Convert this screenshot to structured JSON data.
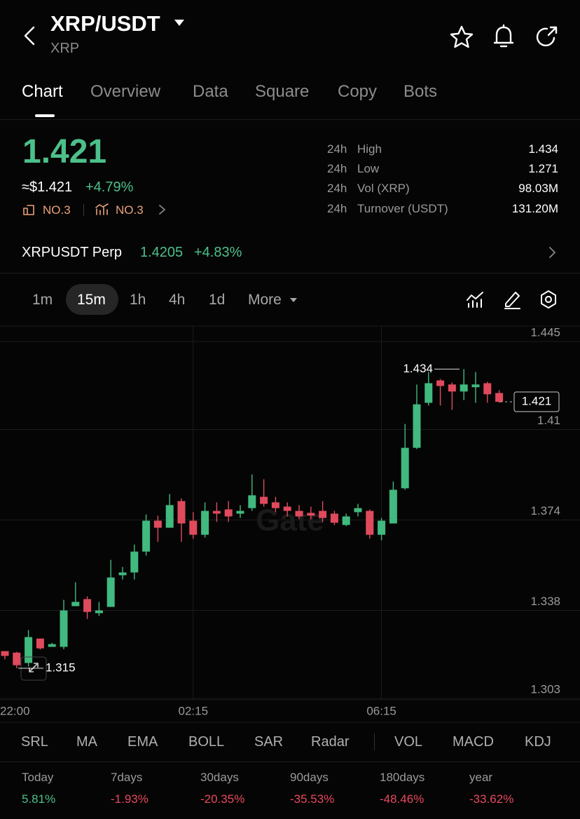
{
  "header": {
    "title": "XRP/USDT",
    "subtitle": "XRP"
  },
  "tabs": [
    "Chart",
    "Overview",
    "Data",
    "Square",
    "Copy",
    "Bots"
  ],
  "price": {
    "last": "1.421",
    "usd": "≈$1.421",
    "change": "+4.79%",
    "rank1": "NO.3",
    "rank2": "NO.3"
  },
  "stats": [
    {
      "period": "24h",
      "label": "High",
      "value": "1.434"
    },
    {
      "period": "24h",
      "label": "Low",
      "value": "1.271"
    },
    {
      "period": "24h",
      "label": "Vol (XRP)",
      "value": "98.03M"
    },
    {
      "period": "24h",
      "label": "Turnover (USDT)",
      "value": "131.20M"
    }
  ],
  "perp": {
    "name": "XRPUSDT Perp",
    "price": "1.4205",
    "change": "+4.83%"
  },
  "intervals": [
    "1m",
    "15m",
    "1h",
    "4h",
    "1d",
    "More"
  ],
  "chart_data": {
    "type": "candlestick",
    "watermark": "Gate",
    "categories": [
      "22:00",
      null,
      null,
      null,
      null,
      null,
      null,
      null,
      null,
      null,
      null,
      null,
      null,
      null,
      null,
      null,
      "02:15",
      null,
      null,
      null,
      null,
      null,
      null,
      null,
      null,
      null,
      null,
      null,
      null,
      null,
      null,
      null,
      "06:15",
      null,
      null,
      null,
      null,
      null,
      null,
      null,
      null,
      null,
      null
    ],
    "open": [
      1.3218,
      1.3212,
      1.3171,
      1.3268,
      1.3235,
      1.3235,
      1.3397,
      1.3425,
      1.3369,
      1.3394,
      1.352,
      1.3531,
      1.3614,
      1.3737,
      1.3709,
      1.3815,
      1.3737,
      1.3681,
      1.3776,
      1.3782,
      1.3765,
      1.3787,
      1.3832,
      1.381,
      1.3793,
      1.3776,
      1.3768,
      1.3776,
      1.3765,
      1.372,
      1.3771,
      1.3776,
      1.3681,
      1.3726,
      1.3866,
      1.4027,
      1.4206,
      1.4295,
      1.4279,
      1.4251,
      1.4268,
      1.4284,
      1.4245
    ],
    "high": [
      1.3218,
      1.3215,
      1.3302,
      1.3268,
      1.3251,
      1.3422,
      1.3492,
      1.3436,
      1.3414,
      1.3581,
      1.3553,
      1.3642,
      1.3762,
      1.3757,
      1.3843,
      1.3826,
      1.3771,
      1.381,
      1.381,
      1.3815,
      1.3799,
      1.3921,
      1.3902,
      1.3832,
      1.381,
      1.3799,
      1.3793,
      1.3815,
      1.3776,
      1.3765,
      1.3804,
      1.3782,
      1.3748,
      1.3893,
      1.4122,
      1.4279,
      1.4329,
      1.4301,
      1.4287,
      1.434,
      1.4329,
      1.429,
      1.4256
    ],
    "low": [
      1.3185,
      1.315,
      1.3157,
      1.3224,
      1.3235,
      1.3226,
      1.3397,
      1.3346,
      1.3358,
      1.3394,
      1.3503,
      1.3503,
      1.3598,
      1.3653,
      1.3709,
      1.3653,
      1.3665,
      1.367,
      1.3732,
      1.3732,
      1.3748,
      1.3776,
      1.3793,
      1.3771,
      1.3754,
      1.3743,
      1.3743,
      1.3732,
      1.372,
      1.3715,
      1.3754,
      1.3665,
      1.3659,
      1.3726,
      1.386,
      1.4022,
      1.4195,
      1.4195,
      1.4178,
      1.4217,
      1.4206,
      1.4206,
      1.4206
    ],
    "close": [
      1.3199,
      1.3162,
      1.3274,
      1.3229,
      1.3246,
      1.338,
      1.3414,
      1.3374,
      1.338,
      1.3511,
      1.3531,
      1.3614,
      1.3737,
      1.3709,
      1.3799,
      1.3726,
      1.3681,
      1.3776,
      1.3765,
      1.3754,
      1.3776,
      1.3838,
      1.3804,
      1.3787,
      1.3776,
      1.3754,
      1.3757,
      1.3748,
      1.3729,
      1.3754,
      1.3787,
      1.3681,
      1.3737,
      1.386,
      1.4027,
      1.42,
      1.4284,
      1.4273,
      1.4251,
      1.4279,
      1.4279,
      1.424,
      1.421
    ],
    "up_color": "#41b97f",
    "down_color": "#e04a5d",
    "ylim": [
      1.303,
      1.445
    ],
    "yticks": [
      1.445,
      1.41,
      1.374,
      1.338,
      1.303
    ],
    "grid": true,
    "high_marker": 1.434,
    "low_marker": 1.315,
    "last_price": 1.421
  },
  "indicators": [
    "SRL",
    "MA",
    "EMA",
    "BOLL",
    "SAR",
    "Radar",
    "VOL",
    "MACD",
    "KDJ"
  ],
  "performance": [
    {
      "period": "Today",
      "change": "5.81%"
    },
    {
      "period": "7days",
      "change": "-1.93%"
    },
    {
      "period": "30days",
      "change": "-20.35%"
    },
    {
      "period": "90days",
      "change": "-35.53%"
    },
    {
      "period": "180days",
      "change": "-48.46%"
    },
    {
      "period": "year",
      "change": "-33.62%"
    }
  ]
}
